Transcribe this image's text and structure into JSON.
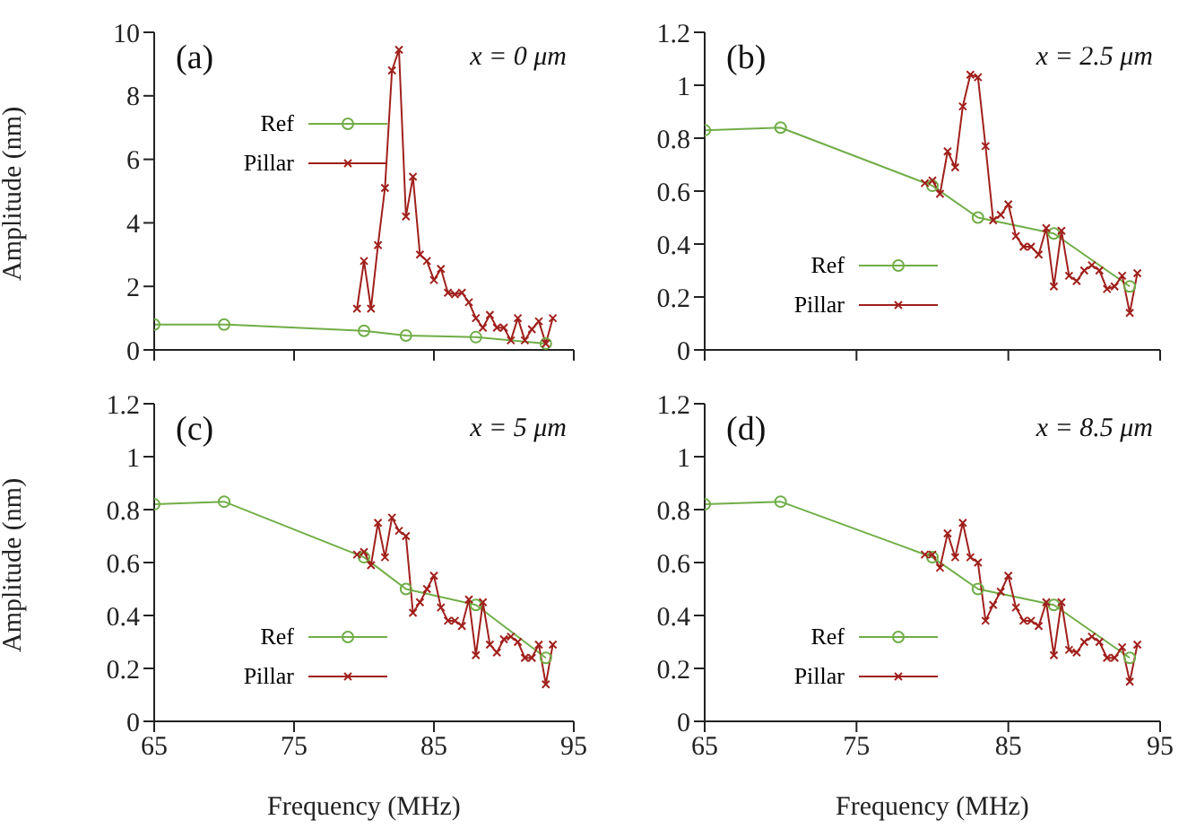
{
  "chart_data": [
    {
      "type": "line",
      "ylabel": "Amplitude (nm)",
      "annotations": [
        "(a)",
        "x = 0 μm"
      ],
      "xlim": [
        65,
        95
      ],
      "xticks": [
        65,
        75,
        85,
        95
      ],
      "ylim": [
        0,
        10
      ],
      "yticks": [
        0,
        2,
        4,
        6,
        8,
        10
      ],
      "tick_labels": "y",
      "legend": "top left",
      "series": [
        {
          "name": "Ref",
          "color": "#70ad47",
          "marker": "circle",
          "x": [
            65,
            70,
            80,
            83,
            88,
            93
          ],
          "values": [
            0.8,
            0.8,
            0.6,
            0.45,
            0.4,
            0.2
          ]
        },
        {
          "name": "Pillar",
          "color": "#a0201c",
          "marker": "cross",
          "x": [
            79.5,
            80,
            80.5,
            81,
            81.5,
            82,
            82.5,
            83,
            83.5,
            84,
            84.5,
            85,
            85.5,
            86,
            86.5,
            87,
            87.5,
            88,
            88.5,
            89,
            89.5,
            90,
            90.5,
            91,
            91.5,
            92,
            92.5,
            93,
            93.5
          ],
          "values": [
            1.3,
            2.8,
            1.3,
            3.3,
            5.1,
            8.8,
            9.45,
            4.2,
            5.45,
            3.0,
            2.8,
            2.2,
            2.55,
            1.8,
            1.75,
            1.8,
            1.5,
            1.0,
            0.7,
            1.1,
            0.7,
            0.7,
            0.3,
            1.0,
            0.3,
            0.65,
            0.9,
            0.2,
            1.0
          ]
        }
      ]
    },
    {
      "type": "line",
      "annotations": [
        "(b)",
        "x = 2.5 μm"
      ],
      "xlim": [
        65,
        95
      ],
      "xticks": [
        65,
        75,
        85,
        95
      ],
      "ylim": [
        0,
        1.2
      ],
      "yticks": [
        0,
        0.2,
        0.4,
        0.6,
        0.8,
        1,
        1.2
      ],
      "tick_labels": "y",
      "legend": "bottom left",
      "series": [
        {
          "name": "Ref",
          "color": "#70ad47",
          "marker": "circle",
          "x": [
            65,
            70,
            80,
            83,
            88,
            93
          ],
          "values": [
            0.83,
            0.84,
            0.62,
            0.5,
            0.44,
            0.24
          ]
        },
        {
          "name": "Pillar",
          "color": "#a0201c",
          "marker": "cross",
          "x": [
            79.5,
            80,
            80.5,
            81,
            81.5,
            82,
            82.5,
            83,
            83.5,
            84,
            84.5,
            85,
            85.5,
            86,
            86.5,
            87,
            87.5,
            88,
            88.5,
            89,
            89.5,
            90,
            90.5,
            91,
            91.5,
            92,
            92.5,
            93,
            93.5
          ],
          "values": [
            0.63,
            0.64,
            0.59,
            0.75,
            0.69,
            0.92,
            1.04,
            1.03,
            0.77,
            0.49,
            0.51,
            0.55,
            0.43,
            0.39,
            0.39,
            0.36,
            0.46,
            0.24,
            0.45,
            0.28,
            0.26,
            0.3,
            0.32,
            0.3,
            0.23,
            0.24,
            0.28,
            0.14,
            0.29
          ]
        }
      ]
    },
    {
      "type": "line",
      "xlabel": "Frequency (MHz)",
      "ylabel": "Amplitude (nm)",
      "annotations": [
        "(c)",
        "x = 5 μm"
      ],
      "xlim": [
        65,
        95
      ],
      "xticks": [
        65,
        75,
        85,
        95
      ],
      "ylim": [
        0,
        1.2
      ],
      "yticks": [
        0,
        0.2,
        0.4,
        0.6,
        0.8,
        1,
        1.2
      ],
      "legend": "bottom left",
      "series": [
        {
          "name": "Ref",
          "color": "#70ad47",
          "marker": "circle",
          "x": [
            65,
            70,
            80,
            83,
            88,
            93
          ],
          "values": [
            0.82,
            0.83,
            0.62,
            0.5,
            0.44,
            0.24
          ]
        },
        {
          "name": "Pillar",
          "color": "#a0201c",
          "marker": "cross",
          "x": [
            79.5,
            80,
            80.5,
            81,
            81.5,
            82,
            82.5,
            83,
            83.5,
            84,
            84.5,
            85,
            85.5,
            86,
            86.5,
            87,
            87.5,
            88,
            88.5,
            89,
            89.5,
            90,
            90.5,
            91,
            91.5,
            92,
            92.5,
            93,
            93.5
          ],
          "values": [
            0.63,
            0.64,
            0.59,
            0.75,
            0.62,
            0.77,
            0.72,
            0.7,
            0.41,
            0.45,
            0.5,
            0.55,
            0.43,
            0.38,
            0.38,
            0.36,
            0.46,
            0.25,
            0.45,
            0.29,
            0.26,
            0.31,
            0.32,
            0.3,
            0.24,
            0.24,
            0.29,
            0.14,
            0.29
          ]
        }
      ]
    },
    {
      "type": "line",
      "xlabel": "Frequency (MHz)",
      "annotations": [
        "(d)",
        "x = 8.5 μm"
      ],
      "xlim": [
        65,
        95
      ],
      "xticks": [
        65,
        75,
        85,
        95
      ],
      "ylim": [
        0,
        1.2
      ],
      "yticks": [
        0,
        0.2,
        0.4,
        0.6,
        0.8,
        1,
        1.2
      ],
      "legend": "bottom left",
      "series": [
        {
          "name": "Ref",
          "color": "#70ad47",
          "marker": "circle",
          "x": [
            65,
            70,
            80,
            83,
            88,
            93
          ],
          "values": [
            0.82,
            0.83,
            0.62,
            0.5,
            0.44,
            0.24
          ]
        },
        {
          "name": "Pillar",
          "color": "#a0201c",
          "marker": "cross",
          "x": [
            79.5,
            80,
            80.5,
            81,
            81.5,
            82,
            82.5,
            83,
            83.5,
            84,
            84.5,
            85,
            85.5,
            86,
            86.5,
            87,
            87.5,
            88,
            88.5,
            89,
            89.5,
            90,
            90.5,
            91,
            91.5,
            92,
            92.5,
            93,
            93.5
          ],
          "values": [
            0.63,
            0.63,
            0.58,
            0.71,
            0.62,
            0.75,
            0.62,
            0.6,
            0.38,
            0.44,
            0.49,
            0.55,
            0.43,
            0.38,
            0.38,
            0.36,
            0.45,
            0.25,
            0.45,
            0.27,
            0.26,
            0.3,
            0.32,
            0.3,
            0.24,
            0.24,
            0.28,
            0.15,
            0.29
          ]
        }
      ]
    }
  ]
}
